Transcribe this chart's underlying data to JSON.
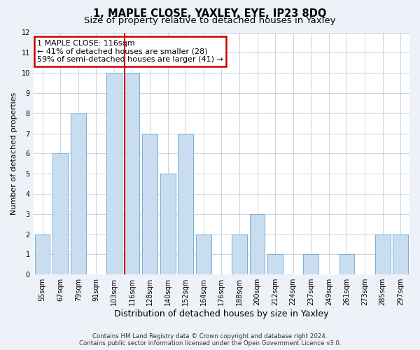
{
  "title": "1, MAPLE CLOSE, YAXLEY, EYE, IP23 8DQ",
  "subtitle": "Size of property relative to detached houses in Yaxley",
  "xlabel": "Distribution of detached houses by size in Yaxley",
  "ylabel": "Number of detached properties",
  "categories": [
    "55sqm",
    "67sqm",
    "79sqm",
    "91sqm",
    "103sqm",
    "116sqm",
    "128sqm",
    "140sqm",
    "152sqm",
    "164sqm",
    "176sqm",
    "188sqm",
    "200sqm",
    "212sqm",
    "224sqm",
    "237sqm",
    "249sqm",
    "261sqm",
    "273sqm",
    "285sqm",
    "297sqm"
  ],
  "values": [
    2,
    6,
    8,
    0,
    10,
    10,
    7,
    5,
    7,
    2,
    0,
    2,
    3,
    1,
    0,
    1,
    0,
    1,
    0,
    2,
    2
  ],
  "bar_color": "#c9ddf0",
  "bar_edge_color": "#7aafd4",
  "highlight_index": 5,
  "highlight_line_color": "#cc0000",
  "annotation_line1": "1 MAPLE CLOSE: 116sqm",
  "annotation_line2": "← 41% of detached houses are smaller (28)",
  "annotation_line3": "59% of semi-detached houses are larger (41) →",
  "annotation_box_edge_color": "#cc0000",
  "ylim": [
    0,
    12
  ],
  "yticks": [
    0,
    1,
    2,
    3,
    4,
    5,
    6,
    7,
    8,
    9,
    10,
    11,
    12
  ],
  "footer_line1": "Contains HM Land Registry data © Crown copyright and database right 2024.",
  "footer_line2": "Contains public sector information licensed under the Open Government Licence v3.0.",
  "bg_color": "#eef2f8",
  "plot_bg_color": "#ffffff",
  "grid_color": "#c8d4e4",
  "title_fontsize": 10.5,
  "subtitle_fontsize": 9.5,
  "tick_fontsize": 7,
  "ylabel_fontsize": 8,
  "xlabel_fontsize": 9,
  "annotation_fontsize": 8
}
